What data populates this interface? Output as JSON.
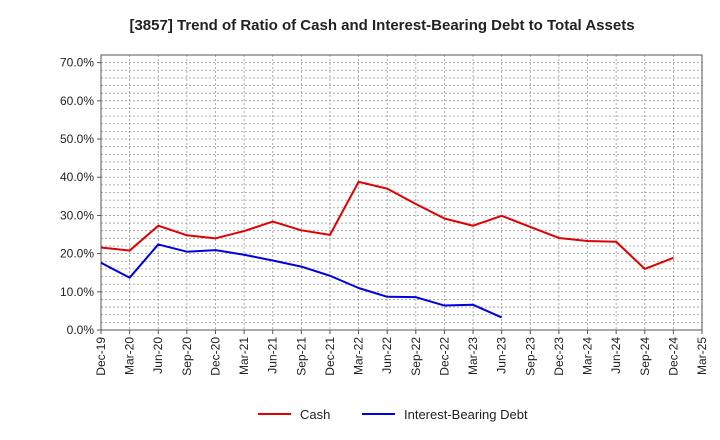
{
  "chart_data": {
    "type": "line",
    "title": "[3857]  Trend of Ratio of Cash and Interest-Bearing Debt to Total Assets",
    "xlabel": "",
    "ylabel": "",
    "categories": [
      "Dec-19",
      "Mar-20",
      "Jun-20",
      "Sep-20",
      "Dec-20",
      "Mar-21",
      "Jun-21",
      "Sep-21",
      "Dec-21",
      "Mar-22",
      "Jun-22",
      "Sep-22",
      "Dec-22",
      "Mar-23",
      "Jun-23",
      "Sep-23",
      "Dec-23",
      "Mar-24",
      "Jun-24",
      "Sep-24",
      "Dec-24",
      "Mar-25"
    ],
    "y_ticks": [
      "0.0%",
      "10.0%",
      "20.0%",
      "30.0%",
      "40.0%",
      "50.0%",
      "60.0%",
      "70.0%"
    ],
    "ylim": [
      0,
      72
    ],
    "grid": true,
    "legend_position": "bottom",
    "series": [
      {
        "name": "Cash",
        "color": "#e00000",
        "values": [
          21.6,
          20.8,
          27.3,
          24.8,
          24.0,
          25.9,
          28.4,
          26.1,
          24.9,
          38.8,
          37.0,
          33.0,
          29.2,
          27.3,
          29.9,
          27.0,
          24.1,
          23.3,
          23.1,
          16.0,
          18.9,
          null
        ]
      },
      {
        "name": "Interest-Bearing Debt",
        "color": "#0000e0",
        "values": [
          17.6,
          13.7,
          22.4,
          20.5,
          20.9,
          19.7,
          18.2,
          16.6,
          14.2,
          11.0,
          8.7,
          8.6,
          6.4,
          6.6,
          3.3,
          null,
          null,
          null,
          null,
          null,
          null,
          null
        ]
      }
    ]
  }
}
